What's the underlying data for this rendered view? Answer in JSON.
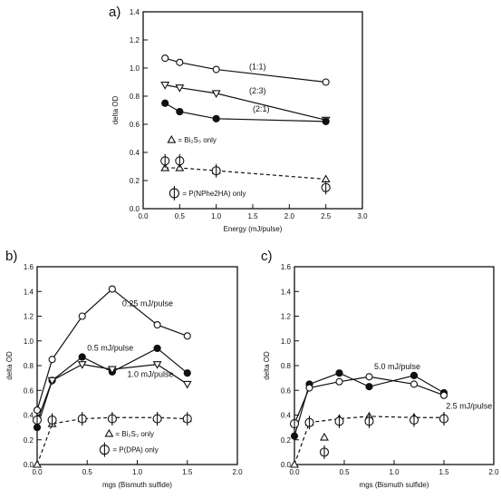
{
  "chart_data": [
    {
      "panel_label": "a)",
      "type": "line",
      "xlabel": "Energy (mJ/pulse)",
      "ylabel": "delta OD",
      "xlim": [
        0,
        3.0
      ],
      "ylim": [
        0,
        1.4
      ],
      "x_ticks": [
        "0.0",
        "0.5",
        "1.0",
        "1.5",
        "2.0",
        "2.5",
        "3.0"
      ],
      "y_ticks": [
        "0.0",
        "0.2",
        "0.4",
        "0.6",
        "0.8",
        "1.0",
        "1.2",
        "1.4"
      ],
      "series": [
        {
          "name": "(1:1)",
          "marker": "open-circle",
          "style": "solid",
          "x": [
            0.3,
            0.5,
            1.0,
            2.5
          ],
          "y": [
            1.07,
            1.04,
            0.99,
            0.9
          ]
        },
        {
          "name": "(2:3)",
          "marker": "open-triangle-down",
          "style": "solid",
          "x": [
            0.3,
            0.5,
            1.0,
            2.5
          ],
          "y": [
            0.88,
            0.86,
            0.82,
            0.63
          ]
        },
        {
          "name": "(2:1)",
          "marker": "filled-circle",
          "style": "solid",
          "x": [
            0.3,
            0.5,
            1.0,
            2.5
          ],
          "y": [
            0.75,
            0.69,
            0.64,
            0.62
          ]
        },
        {
          "marker": "open-triangle-up",
          "style": "dashed",
          "x": [
            0.3,
            0.5,
            1.0,
            2.5
          ],
          "y": [
            0.29,
            0.29,
            0.27,
            0.21
          ]
        },
        {
          "marker": "phi-circle",
          "style": "none",
          "x": [
            0.3,
            0.5,
            1.0,
            2.5
          ],
          "y": [
            0.34,
            0.34,
            0.27,
            0.15
          ]
        }
      ],
      "annotations": [
        {
          "text": "(1:1)",
          "x": 1.45,
          "y": 0.99
        },
        {
          "text": "(2:3)",
          "x": 1.45,
          "y": 0.82
        },
        {
          "text": "(2:1)",
          "x": 1.5,
          "y": 0.69
        },
        {
          "text": "= Bi₂S₃ only",
          "x": 0.5,
          "y": 0.49,
          "symbol": "triangle"
        },
        {
          "text": "= P(NPhe2HA) only",
          "x": 0.6,
          "y": 0.11,
          "symbol": "phi"
        }
      ]
    },
    {
      "panel_label": "b)",
      "type": "line",
      "xlabel": "mgs (Bismuth sulfide)",
      "ylabel": "delta OD",
      "xlim": [
        0,
        2.0
      ],
      "ylim": [
        0,
        1.6
      ],
      "x_ticks": [
        "0.0",
        "0.5",
        "1.0",
        "1.5",
        "2.0"
      ],
      "y_ticks": [
        "0.0",
        "0.2",
        "0.4",
        "0.6",
        "0.8",
        "1.0",
        "1.2",
        "1.4",
        "1.6"
      ],
      "series": [
        {
          "name": "0.25 mJ/pulse",
          "marker": "open-circle",
          "style": "solid",
          "x": [
            0.0,
            0.15,
            0.45,
            0.75,
            1.2,
            1.5
          ],
          "y": [
            0.44,
            0.85,
            1.2,
            1.42,
            1.13,
            1.04
          ]
        },
        {
          "name": "0.5 mJ/pulse",
          "marker": "filled-circle",
          "style": "solid",
          "x": [
            0.0,
            0.15,
            0.45,
            0.75,
            1.2,
            1.5
          ],
          "y": [
            0.3,
            0.68,
            0.87,
            0.75,
            0.94,
            0.74
          ]
        },
        {
          "name": "1.0 mJ/pulse",
          "marker": "open-triangle-down",
          "style": "solid",
          "x": [
            0.0,
            0.15,
            0.45,
            0.75,
            1.2,
            1.5
          ],
          "y": [
            0.35,
            0.68,
            0.81,
            0.77,
            0.81,
            0.65
          ]
        },
        {
          "marker": "open-triangle-up",
          "style": "dashed",
          "x": [
            0.0,
            0.15,
            0.45,
            0.75,
            1.2,
            1.5
          ],
          "y": [
            0.0,
            0.33,
            0.37,
            0.38,
            0.38,
            0.37
          ]
        },
        {
          "marker": "phi-circle",
          "style": "none",
          "x": [
            0.0,
            0.15,
            0.45,
            0.75,
            1.2,
            1.5
          ],
          "y": [
            0.36,
            0.36,
            0.37,
            0.37,
            0.37,
            0.37
          ]
        }
      ],
      "annotations": [
        {
          "text": "0.25 mJ/pulse",
          "x": 0.85,
          "y": 1.28
        },
        {
          "text": "0.5 mJ/pulse",
          "x": 0.5,
          "y": 0.92
        },
        {
          "text": "1.0 mJ/pulse",
          "x": 0.9,
          "y": 0.71
        },
        {
          "text": "= Bi₂S₃ only",
          "x": 0.8,
          "y": 0.25,
          "symbol": "triangle"
        },
        {
          "text": "= P(DPA) only",
          "x": 0.8,
          "y": 0.12,
          "symbol": "phi"
        }
      ]
    },
    {
      "panel_label": "c)",
      "type": "line",
      "xlabel": "mgs (Bismuth sulfide)",
      "ylabel": "delta OD",
      "xlim": [
        0,
        2.0
      ],
      "ylim": [
        0,
        1.6
      ],
      "x_ticks": [
        "0.0",
        "0.5",
        "1.0",
        "1.5",
        "2.0"
      ],
      "y_ticks": [
        "0.0",
        "0.2",
        "0.4",
        "0.6",
        "0.8",
        "1.0",
        "1.2",
        "1.4",
        "1.6"
      ],
      "series": [
        {
          "name": "5.0 mJ/pulse",
          "marker": "filled-circle",
          "style": "solid",
          "x": [
            0.0,
            0.15,
            0.45,
            0.75,
            1.2,
            1.5
          ],
          "y": [
            0.23,
            0.65,
            0.74,
            0.63,
            0.72,
            0.58
          ]
        },
        {
          "name": "2.5 mJ/pulse",
          "marker": "open-circle",
          "style": "solid",
          "x": [
            0.0,
            0.15,
            0.45,
            0.75,
            1.2,
            1.5
          ],
          "y": [
            0.33,
            0.62,
            0.67,
            0.71,
            0.65,
            0.56
          ]
        },
        {
          "marker": "open-triangle-up",
          "style": "dashed",
          "x": [
            0.0,
            0.15,
            0.45,
            0.75,
            1.2,
            1.5
          ],
          "y": [
            0.0,
            0.34,
            0.37,
            0.39,
            0.38,
            0.38
          ]
        },
        {
          "marker": "phi-circle",
          "style": "none",
          "x": [
            0.0,
            0.15,
            0.45,
            0.75,
            1.2,
            1.5
          ],
          "y": [
            0.33,
            0.34,
            0.35,
            0.35,
            0.36,
            0.37
          ]
        },
        {
          "marker": "open-triangle-up",
          "style": "none",
          "x": [
            0.3
          ],
          "y": [
            0.22
          ]
        },
        {
          "marker": "phi-circle",
          "style": "none",
          "x": [
            0.3
          ],
          "y": [
            0.1
          ]
        }
      ],
      "annotations": [
        {
          "text": "5.0 mJ/pulse",
          "x": 0.8,
          "y": 0.77
        },
        {
          "text": "2.5 mJ/pulse",
          "x": 1.52,
          "y": 0.45
        }
      ]
    }
  ]
}
